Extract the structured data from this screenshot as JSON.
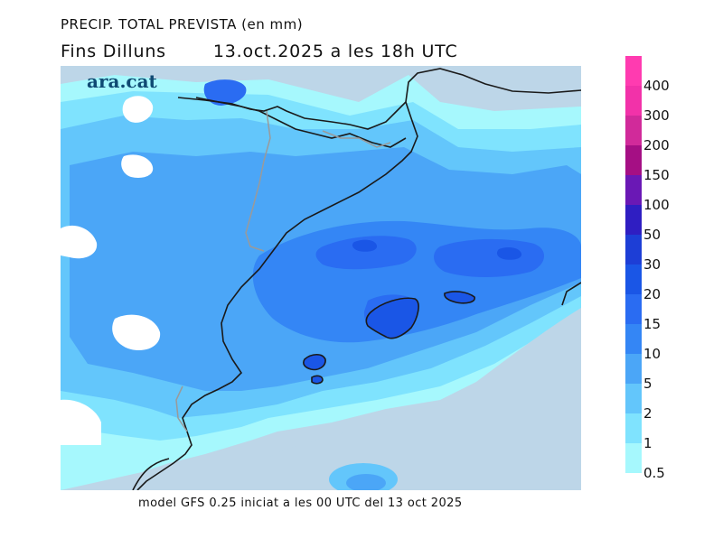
{
  "header": {
    "title": "PRECIP. TOTAL PREVISTA (en mm)",
    "valid_prefix": "Fins Dilluns",
    "valid_date": "13.oct.2025 a les 18h UTC"
  },
  "brand": {
    "logo_text": "ara.cat"
  },
  "footer": {
    "model_text": "model GFS 0.25 iniciat a les 00 UTC del 13 oct 2025"
  },
  "legend": {
    "unit": "mm",
    "items": [
      {
        "label": "400",
        "color": "#ff3bb0"
      },
      {
        "label": "300",
        "color": "#f232a9"
      },
      {
        "label": "200",
        "color": "#d12a9a"
      },
      {
        "label": "150",
        "color": "#a50f84"
      },
      {
        "label": "100",
        "color": "#6a18b5"
      },
      {
        "label": "50",
        "color": "#2f1ec2"
      },
      {
        "label": "30",
        "color": "#1d3ed6"
      },
      {
        "label": "20",
        "color": "#1a56e6"
      },
      {
        "label": "15",
        "color": "#2a6cf2"
      },
      {
        "label": "10",
        "color": "#3486f5"
      },
      {
        "label": "5",
        "color": "#4ba6f7"
      },
      {
        "label": "2",
        "color": "#63c6fb"
      },
      {
        "label": "1",
        "color": "#7fe3fe"
      },
      {
        "label": "0.5",
        "color": "#a6f8fd"
      }
    ]
  },
  "map_colors": {
    "sea": "#bdd6e8",
    "border": "#1a1a1a",
    "internal_border": "#9a9a9a"
  }
}
